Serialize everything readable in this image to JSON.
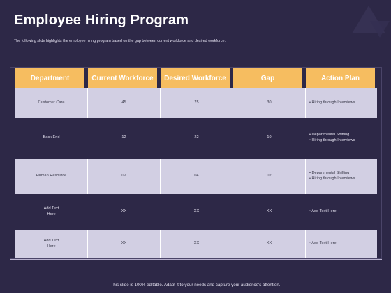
{
  "slide": {
    "title": "Employee Hiring Program",
    "subtitle": "The following slide highlights the employee hiring program based on the gap between current workforce and desired workforce.",
    "footer": "This slide is 100% editable. Adapt it to your needs and capture your audience's attention."
  },
  "table": {
    "headers": [
      "Department",
      "Current Workforce",
      "Desired Workforce",
      "Gap",
      "Action Plan"
    ],
    "rows": [
      {
        "department": "Customer Care",
        "current": "45",
        "desired": "75",
        "gap": "30",
        "plan": [
          "Hiring through Interviews"
        ]
      },
      {
        "department": "Back End",
        "current": "12",
        "desired": "22",
        "gap": "10",
        "plan": [
          "Departmental Shifting",
          "Hiring through Interviews"
        ]
      },
      {
        "department": "Human Resource",
        "current": "02",
        "desired": "04",
        "gap": "02",
        "plan": [
          "Departmental Shifting",
          "Hiring through Interviews"
        ]
      },
      {
        "department_line1": "Add Text",
        "department_line2": "Here",
        "current": "XX",
        "desired": "XX",
        "gap": "XX",
        "plan": [
          "Add Text Here"
        ]
      },
      {
        "department_line1": "Add Text",
        "department_line2": "Here",
        "current": "XX",
        "desired": "XX",
        "gap": "XX",
        "plan": [
          "Add Text Here"
        ]
      }
    ]
  },
  "colors": {
    "background": "#2d2847",
    "header": "#f6bd60",
    "shaded_row": "#d2cfe3"
  }
}
